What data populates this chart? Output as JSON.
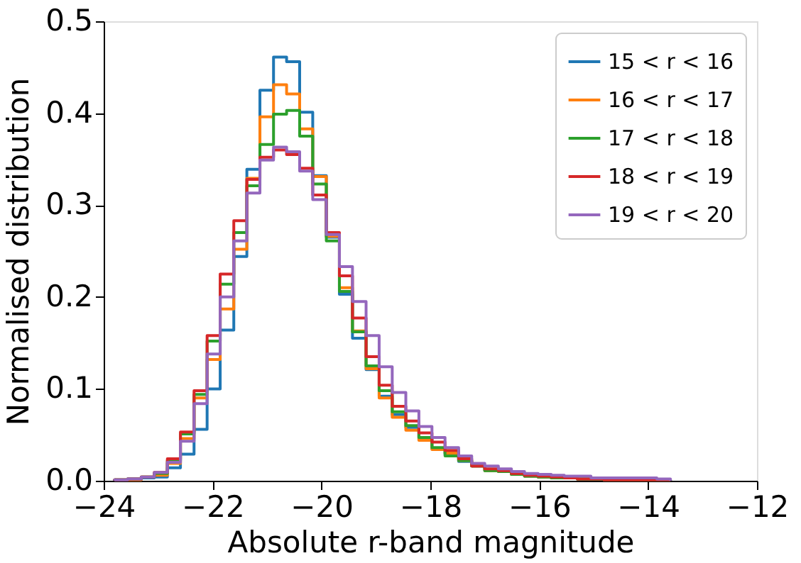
{
  "chart_data": {
    "type": "histogram",
    "xlabel": "Absolute r-band magnitude",
    "ylabel": "Normalised distribution",
    "bins": [
      -23.8,
      -23.56,
      -23.31,
      -23.07,
      -22.83,
      -22.59,
      -22.34,
      -22.1,
      -21.86,
      -21.61,
      -21.37,
      -21.13,
      -20.88,
      -20.64,
      -20.4,
      -20.16,
      -19.91,
      -19.67,
      -19.43,
      -19.18,
      -18.94,
      -18.7,
      -18.45,
      -18.21,
      -17.97,
      -17.73,
      -17.48,
      -17.24,
      -17.0,
      -16.75,
      -16.51,
      -16.27,
      -16.02,
      -15.78,
      -15.54,
      -15.3,
      -15.05,
      -14.81,
      -14.57,
      -14.32,
      -14.08,
      -13.84,
      -13.59
    ],
    "series": [
      {
        "name": "15 < r < 16",
        "color": "#1f77b4",
        "values": [
          0.001,
          0.002,
          0.003,
          0.004,
          0.014,
          0.029,
          0.056,
          0.1,
          0.164,
          0.244,
          0.339,
          0.425,
          0.461,
          0.456,
          0.401,
          0.332,
          0.265,
          0.203,
          0.155,
          0.121,
          0.092,
          0.072,
          0.058,
          0.045,
          0.035,
          0.029,
          0.021,
          0.016,
          0.011,
          0.01,
          0.007,
          0.005,
          0.004,
          0.003,
          0.003,
          0.002,
          0.002,
          0.001,
          0.001,
          0.001,
          0.001,
          0.001
        ]
      },
      {
        "name": "16 < r < 17",
        "color": "#ff7f0e",
        "values": [
          0.001,
          0.001,
          0.004,
          0.006,
          0.019,
          0.046,
          0.09,
          0.132,
          0.187,
          0.252,
          0.329,
          0.396,
          0.431,
          0.421,
          0.383,
          0.331,
          0.266,
          0.21,
          0.163,
          0.122,
          0.09,
          0.069,
          0.055,
          0.044,
          0.034,
          0.03,
          0.022,
          0.016,
          0.011,
          0.01,
          0.007,
          0.005,
          0.004,
          0.003,
          0.003,
          0.002,
          0.002,
          0.001,
          0.001,
          0.001,
          0.001,
          0.001
        ]
      },
      {
        "name": "17 < r < 18",
        "color": "#2ca02c",
        "values": [
          0.001,
          0.002,
          0.004,
          0.008,
          0.022,
          0.051,
          0.094,
          0.152,
          0.214,
          0.27,
          0.321,
          0.366,
          0.399,
          0.403,
          0.375,
          0.323,
          0.261,
          0.206,
          0.162,
          0.125,
          0.098,
          0.075,
          0.06,
          0.047,
          0.036,
          0.027,
          0.022,
          0.016,
          0.011,
          0.01,
          0.007,
          0.005,
          0.004,
          0.003,
          0.003,
          0.002,
          0.002,
          0.001,
          0.001,
          0.001,
          0.001,
          0.001
        ]
      },
      {
        "name": "18 < r < 19",
        "color": "#d62728",
        "values": [
          0.001,
          0.002,
          0.004,
          0.009,
          0.024,
          0.053,
          0.098,
          0.158,
          0.225,
          0.283,
          0.328,
          0.352,
          0.36,
          0.355,
          0.34,
          0.311,
          0.27,
          0.223,
          0.177,
          0.135,
          0.104,
          0.081,
          0.065,
          0.052,
          0.042,
          0.033,
          0.024,
          0.016,
          0.013,
          0.011,
          0.008,
          0.006,
          0.005,
          0.004,
          0.003,
          0.002,
          0.002,
          0.001,
          0.001,
          0.001,
          0.001,
          0.001
        ]
      },
      {
        "name": "19 < r < 20",
        "color": "#9467bd",
        "values": [
          0.001,
          0.002,
          0.004,
          0.009,
          0.02,
          0.043,
          0.084,
          0.138,
          0.2,
          0.261,
          0.313,
          0.349,
          0.363,
          0.358,
          0.337,
          0.306,
          0.268,
          0.233,
          0.195,
          0.158,
          0.124,
          0.096,
          0.076,
          0.059,
          0.047,
          0.036,
          0.027,
          0.019,
          0.016,
          0.013,
          0.01,
          0.008,
          0.007,
          0.006,
          0.005,
          0.005,
          0.003,
          0.003,
          0.003,
          0.003,
          0.003,
          0.002
        ]
      }
    ],
    "xlim": [
      -24,
      -12
    ],
    "xticks": [
      -24,
      -22,
      -20,
      -18,
      -16,
      -14,
      -12
    ],
    "ylim": [
      0,
      0.5
    ],
    "yticks": [
      {
        "value": 0,
        "label": "0.0"
      },
      0.1,
      0.2,
      0.3,
      0.4,
      0.5
    ],
    "legend": "top right",
    "grid": false
  }
}
